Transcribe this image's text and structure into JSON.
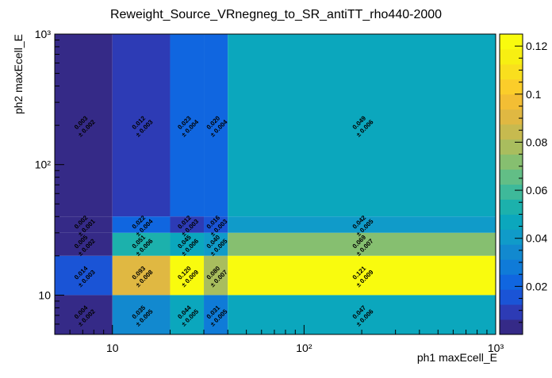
{
  "chart_data": {
    "type": "heatmap",
    "title": "Reweight_Source_VRnegneg_to_SR_antiTT_rho440-2000",
    "xlabel": "ph1 maxEcell_E",
    "ylabel": "ph2 maxEcell_E",
    "x_scale": "log",
    "y_scale": "log",
    "xlim": [
      5,
      1000
    ],
    "ylim": [
      5,
      1000
    ],
    "x_bin_edges": [
      5,
      10,
      20,
      30,
      40,
      1000
    ],
    "y_bin_edges": [
      5,
      10,
      20,
      30,
      40,
      1000
    ],
    "x_major_ticks": [
      {
        "value": 10,
        "label": "10"
      },
      {
        "value": 100,
        "label": "10²"
      },
      {
        "value": 1000,
        "label": "10³"
      }
    ],
    "y_major_ticks": [
      {
        "value": 10,
        "label": "10"
      },
      {
        "value": 100,
        "label": "10²"
      },
      {
        "value": 1000,
        "label": "10³"
      }
    ],
    "z_range": [
      0,
      0.125
    ],
    "z_ticks": [
      {
        "value": 0.02,
        "label": "0.02"
      },
      {
        "value": 0.04,
        "label": "0.04"
      },
      {
        "value": 0.06,
        "label": "0.06"
      },
      {
        "value": 0.08,
        "label": "0.08"
      },
      {
        "value": 0.1,
        "label": "0.1"
      },
      {
        "value": 0.12,
        "label": "0.12"
      }
    ],
    "cells": [
      {
        "xbin": 0,
        "ybin": 4,
        "value": 0.003,
        "label": "0.003",
        "error": "± 0.002"
      },
      {
        "xbin": 1,
        "ybin": 4,
        "value": 0.012,
        "label": "0.012",
        "error": "± 0.003"
      },
      {
        "xbin": 2,
        "ybin": 4,
        "value": 0.023,
        "label": "0.023",
        "error": "± 0.004"
      },
      {
        "xbin": 3,
        "ybin": 4,
        "value": 0.02,
        "label": "0.020",
        "error": "± 0.004"
      },
      {
        "xbin": 4,
        "ybin": 4,
        "value": 0.049,
        "label": "0.049",
        "error": "± 0.006"
      },
      {
        "xbin": 0,
        "ybin": 3,
        "value": 0.002,
        "label": "0.002",
        "error": "± 0.001"
      },
      {
        "xbin": 1,
        "ybin": 3,
        "value": 0.022,
        "label": "0.022",
        "error": "± 0.004"
      },
      {
        "xbin": 2,
        "ybin": 3,
        "value": 0.012,
        "label": "0.012",
        "error": "± 0.003"
      },
      {
        "xbin": 3,
        "ybin": 3,
        "value": 0.016,
        "label": "0.016",
        "error": "± 0.003"
      },
      {
        "xbin": 4,
        "ybin": 3,
        "value": 0.042,
        "label": "0.042",
        "error": "± 0.005"
      },
      {
        "xbin": 0,
        "ybin": 2,
        "value": 0.005,
        "label": "0.005",
        "error": "± 0.002"
      },
      {
        "xbin": 1,
        "ybin": 2,
        "value": 0.051,
        "label": "0.051",
        "error": "± 0.006"
      },
      {
        "xbin": 2,
        "ybin": 2,
        "value": 0.045,
        "label": "0.045",
        "error": "± 0.006"
      },
      {
        "xbin": 3,
        "ybin": 2,
        "value": 0.04,
        "label": "0.040",
        "error": "± 0.005"
      },
      {
        "xbin": 4,
        "ybin": 2,
        "value": 0.069,
        "label": "0.069",
        "error": "± 0.007"
      },
      {
        "xbin": 0,
        "ybin": 1,
        "value": 0.014,
        "label": "0.014",
        "error": "± 0.003"
      },
      {
        "xbin": 1,
        "ybin": 1,
        "value": 0.093,
        "label": "0.093",
        "error": "± 0.008"
      },
      {
        "xbin": 2,
        "ybin": 1,
        "value": 0.12,
        "label": "0.120",
        "error": "± 0.009"
      },
      {
        "xbin": 3,
        "ybin": 1,
        "value": 0.08,
        "label": "0.080",
        "error": "± 0.007"
      },
      {
        "xbin": 4,
        "ybin": 1,
        "value": 0.121,
        "label": "0.121",
        "error": "± 0.009"
      },
      {
        "xbin": 0,
        "ybin": 0,
        "value": 0.004,
        "label": "0.004",
        "error": "± 0.002"
      },
      {
        "xbin": 1,
        "ybin": 0,
        "value": 0.035,
        "label": "0.035",
        "error": "± 0.005"
      },
      {
        "xbin": 2,
        "ybin": 0,
        "value": 0.044,
        "label": "0.044",
        "error": "± 0.005"
      },
      {
        "xbin": 3,
        "ybin": 0,
        "value": 0.031,
        "label": "0.031",
        "error": "± 0.005"
      },
      {
        "xbin": 4,
        "ybin": 0,
        "value": 0.047,
        "label": "0.047",
        "error": "± 0.006"
      }
    ],
    "colormap": [
      "#352a87",
      "#2d3bb5",
      "#1a54d6",
      "#1066e0",
      "#0f7bd8",
      "#1289cf",
      "#109bc9",
      "#0ba7bd",
      "#1cb1ac",
      "#3eb99a",
      "#62be86",
      "#86bf70",
      "#a9bd5e",
      "#c7ba4f",
      "#e0b842",
      "#f3be34",
      "#fbcd2a",
      "#f9df1e",
      "#f7ef12",
      "#f9fb0e"
    ]
  }
}
